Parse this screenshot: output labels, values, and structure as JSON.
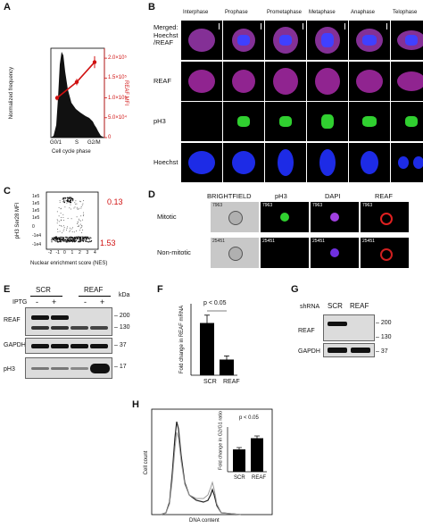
{
  "panels": {
    "A": {
      "label": "A",
      "ylabel": "Normalized frequency",
      "ylabel_right": "REAF MFI",
      "xlabel": "Cell cycle phase",
      "x_ticks": [
        "G0/1",
        "S",
        "G2/M"
      ],
      "right_ticks": [
        "2.0×10⁵",
        "1.5×10⁵",
        "1.0×10⁵",
        "5.0×10⁴",
        "0"
      ],
      "red": "#d01010"
    },
    "B": {
      "label": "B",
      "phases": [
        "Interphase",
        "Prophase",
        "Prometaphase",
        "Metaphase",
        "Anaphase",
        "Telophase"
      ],
      "rows": [
        "Merged:\nHoechst\n/REAF",
        "REAF",
        "pH3",
        "Hoechst"
      ]
    },
    "C": {
      "label": "C",
      "ylabel": "pH3 Ser28 MFI",
      "xlabel": "Nuclear enrichment score (NES)",
      "y_ticks": [
        "1e5",
        "1e5",
        "1e5",
        "1e5",
        "0",
        "-1e4",
        "-1e4"
      ],
      "x_ticks": [
        "-2",
        "-1",
        "0",
        "1",
        "2",
        "3",
        "4"
      ],
      "gate_top": "0.13",
      "gate_bottom": "1.53"
    },
    "D": {
      "label": "D",
      "columns": [
        "BRIGHTFIELD",
        "pH3",
        "DAPI",
        "REAF"
      ],
      "rows": [
        {
          "label": "Mitotic",
          "id": "7963"
        },
        {
          "label": "Non-mitotic",
          "id": "25451"
        }
      ]
    },
    "E": {
      "label": "E",
      "groups": [
        "SCR",
        "REAF"
      ],
      "iptg_label": "IPTG",
      "iptg_signs": [
        "-",
        "+",
        "-",
        "+"
      ],
      "kda": "kDa",
      "rows": [
        "REAF",
        "GAPDH",
        "pH3"
      ],
      "markers": [
        "200",
        "130",
        "37",
        "17"
      ]
    },
    "F": {
      "label": "F",
      "ylabel": "Fold change in REAF mRNA",
      "pvalue": "p < 0.05"
    },
    "G": {
      "label": "G",
      "shrna_label": "shRNA",
      "groups": [
        "SCR",
        "REAF"
      ],
      "rows": [
        "REAF",
        "GAPDH"
      ],
      "markers": [
        "200",
        "130",
        "37"
      ]
    },
    "H": {
      "label": "H",
      "ylabel": "Cell count",
      "xlabel": "DNA content",
      "inset_ylabel": "Fold change in G2/G1 ratio",
      "pvalue": "p < 0.05"
    }
  },
  "chart_data": [
    {
      "type": "bar",
      "panel": "F",
      "title": "",
      "categories": [
        "SCR",
        "REAF"
      ],
      "values": [
        1.0,
        0.3
      ],
      "errors": [
        0.15,
        0.07
      ],
      "ylabel": "Fold change in REAF mRNA",
      "ylim": [
        0,
        1.3
      ]
    },
    {
      "type": "bar",
      "panel": "H-inset",
      "title": "",
      "categories": [
        "SCR",
        "REAF"
      ],
      "values": [
        1.0,
        1.5
      ],
      "errors": [
        0.08,
        0.1
      ],
      "ylabel": "Fold change in G2/G1 ratio",
      "ylim": [
        0,
        2.0
      ]
    },
    {
      "type": "line",
      "panel": "A-overlay",
      "title": "",
      "categories": [
        "G0/1",
        "S",
        "G2/M"
      ],
      "values": [
        100000,
        140000,
        190000
      ],
      "errors": [
        6000,
        8000,
        15000
      ],
      "ylabel": "REAF MFI",
      "ylim": [
        0,
        225000
      ]
    }
  ]
}
